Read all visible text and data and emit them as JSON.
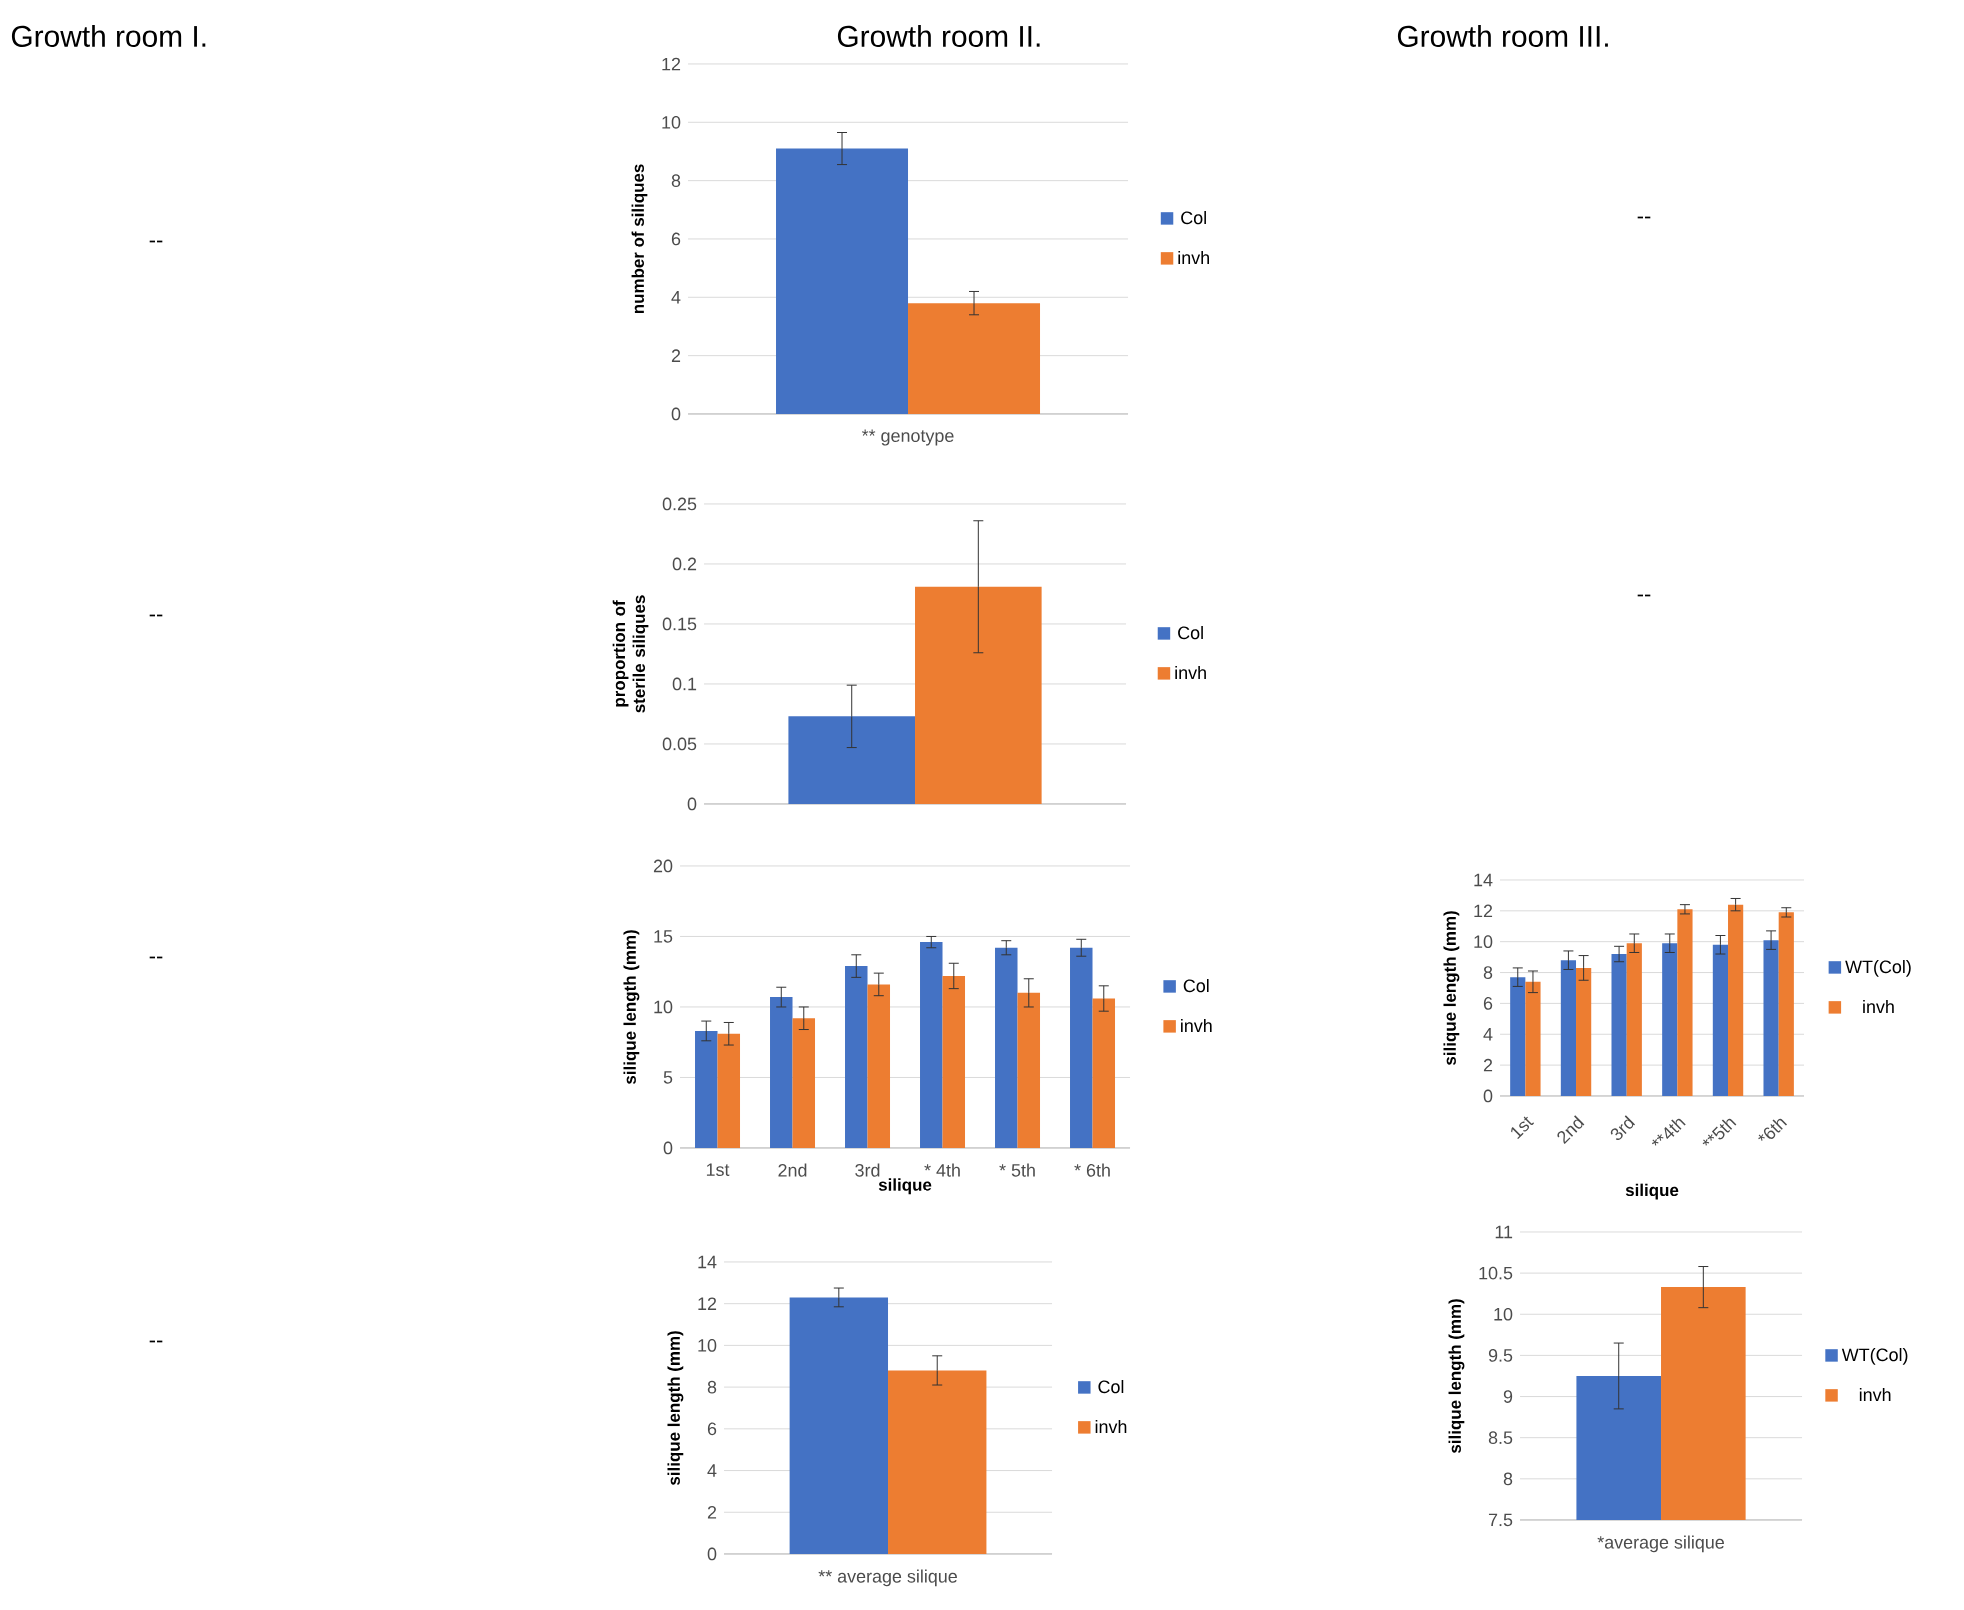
{
  "chart_data": [
    {
      "type": "other",
      "annotations": [
        "Growth room I.",
        "Growth room II.",
        "Growth room III.",
        "--",
        "--",
        "--",
        "--",
        "--",
        "--"
      ]
    },
    {
      "type": "bar",
      "categories": [
        "** genotype"
      ],
      "ylabel": "number of siliques",
      "ylim": [
        0,
        12
      ],
      "yticks": [
        0,
        2,
        4,
        6,
        8,
        10,
        12
      ],
      "grid": "y",
      "legend": "right",
      "series": [
        {
          "name": "Col",
          "color": "#4472c4",
          "values": [
            9.1
          ],
          "errors": [
            0.55
          ]
        },
        {
          "name": "invh",
          "color": "#ed7d31",
          "values": [
            3.8
          ],
          "errors": [
            0.4
          ]
        }
      ]
    },
    {
      "type": "bar",
      "categories": [
        null
      ],
      "ylabel": "proportion of sterile siliques",
      "ylim": [
        0,
        0.25
      ],
      "yticks": [
        0,
        0.05,
        0.1,
        0.15,
        0.2,
        0.25
      ],
      "grid": "y",
      "legend": "right",
      "series": [
        {
          "name": "Col",
          "color": "#4472c4",
          "values": [
            0.073
          ],
          "errors": [
            0.026
          ]
        },
        {
          "name": "invh",
          "color": "#ed7d31",
          "values": [
            0.181
          ],
          "errors": [
            0.055
          ]
        }
      ]
    },
    {
      "type": "bar",
      "categories": [
        "1st",
        "2nd",
        "3rd",
        "* 4th",
        "* 5th",
        "* 6th"
      ],
      "xlabel": "silique",
      "ylabel": "silique length (mm)",
      "ylim": [
        0,
        20
      ],
      "yticks": [
        0,
        5,
        10,
        15,
        20
      ],
      "grid": "y",
      "legend": "right",
      "series": [
        {
          "name": "Col",
          "color": "#4472c4",
          "values": [
            8.3,
            10.7,
            12.9,
            14.6,
            14.2,
            14.2
          ],
          "errors": [
            0.7,
            0.7,
            0.8,
            0.4,
            0.5,
            0.6
          ]
        },
        {
          "name": "invh",
          "color": "#ed7d31",
          "values": [
            8.1,
            9.2,
            11.6,
            12.2,
            11.0,
            10.6
          ],
          "errors": [
            0.8,
            0.8,
            0.8,
            0.9,
            1.0,
            0.9
          ]
        }
      ]
    },
    {
      "type": "bar",
      "categories": [
        "1st",
        "2nd",
        "3rd",
        "**4th",
        "**5th",
        "*6th"
      ],
      "xlabel": "silique",
      "ylabel": "silique length (mm)",
      "ylim": [
        0,
        14
      ],
      "yticks": [
        0,
        2,
        4,
        6,
        8,
        10,
        12,
        14
      ],
      "grid": "y",
      "legend": "right",
      "series": [
        {
          "name": "WT(Col)",
          "color": "#4472c4",
          "values": [
            7.7,
            8.8,
            9.2,
            9.9,
            9.8,
            10.1
          ],
          "errors": [
            0.6,
            0.6,
            0.5,
            0.6,
            0.6,
            0.6
          ]
        },
        {
          "name": "invh",
          "color": "#ed7d31",
          "values": [
            7.4,
            8.3,
            9.9,
            12.1,
            12.4,
            11.9
          ],
          "errors": [
            0.7,
            0.8,
            0.6,
            0.3,
            0.4,
            0.3
          ]
        }
      ]
    },
    {
      "type": "bar",
      "categories": [
        "** average silique"
      ],
      "ylabel": "silique length (mm)",
      "ylim": [
        0,
        14
      ],
      "yticks": [
        0,
        2,
        4,
        6,
        8,
        10,
        12,
        14
      ],
      "grid": "y",
      "legend": "right",
      "series": [
        {
          "name": "Col",
          "color": "#4472c4",
          "values": [
            12.3
          ],
          "errors": [
            0.45
          ]
        },
        {
          "name": "invh",
          "color": "#ed7d31",
          "values": [
            8.8
          ],
          "errors": [
            0.7
          ]
        }
      ]
    },
    {
      "type": "bar",
      "categories": [
        "*average silique"
      ],
      "ylabel": "silique length (mm)",
      "ylim": [
        7.5,
        11
      ],
      "yticks": [
        7.5,
        8,
        8.5,
        9,
        9.5,
        10,
        10.5,
        11
      ],
      "grid": "y",
      "legend": "right",
      "series": [
        {
          "name": "WT(Col)",
          "color": "#4472c4",
          "values": [
            9.25
          ],
          "errors": [
            0.4
          ]
        },
        {
          "name": "invh",
          "color": "#ed7d31",
          "values": [
            10.33
          ],
          "errors": [
            0.25
          ]
        }
      ]
    }
  ]
}
